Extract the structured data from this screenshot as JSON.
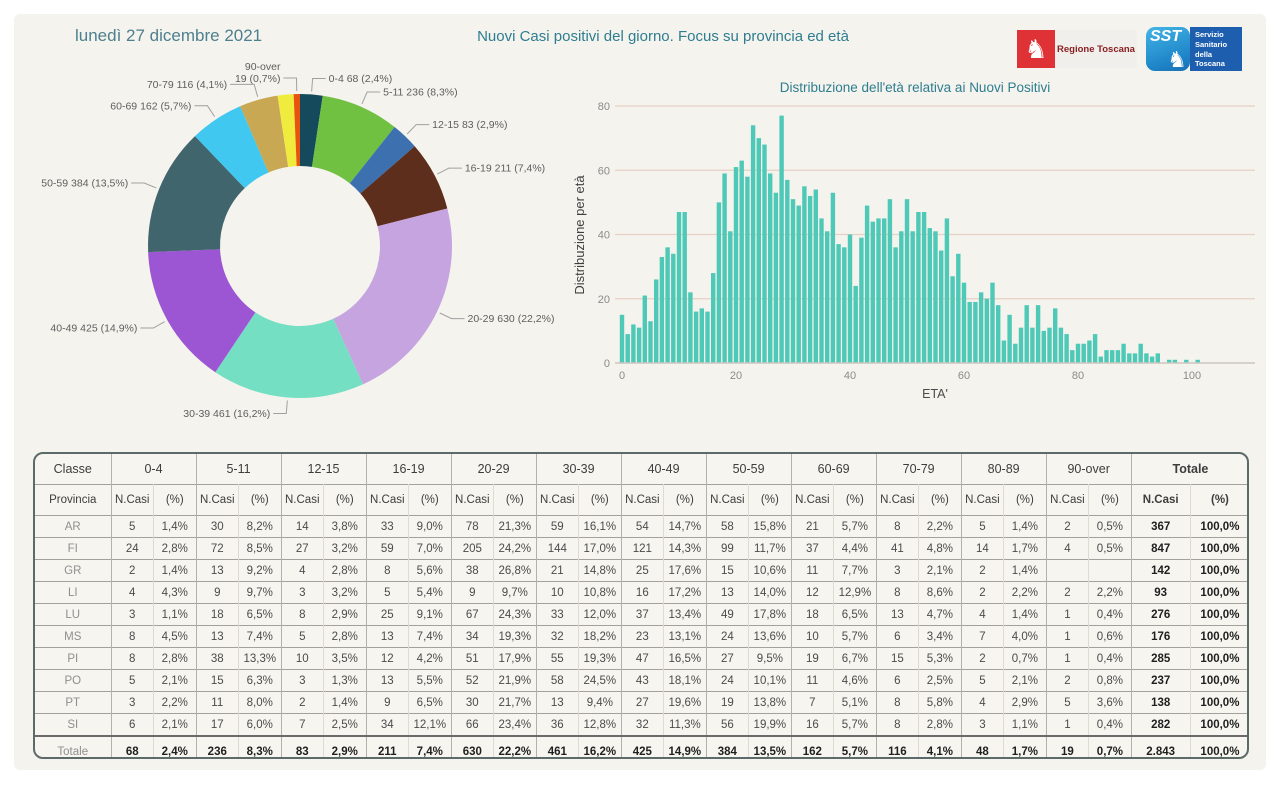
{
  "header": {
    "date": "lunedì 27 dicembre 2021",
    "title": "Nuovi Casi positivi del giorno. Focus su provincia ed età",
    "logos": {
      "regione_label": "Regione Toscana",
      "sst_abbr": "SST",
      "sst_label": "Servizio Sanitario della Toscana"
    }
  },
  "chart_data": [
    {
      "type": "pie",
      "name": "donut-eta-nuovi-positivi",
      "slices": [
        {
          "label": "0-4",
          "value": 68,
          "pct": "2,4%",
          "color": "#15495c"
        },
        {
          "label": "5-11",
          "value": 236,
          "pct": "8,3%",
          "color": "#70c041"
        },
        {
          "label": "12-15",
          "value": 83,
          "pct": "2,9%",
          "color": "#3c70ae"
        },
        {
          "label": "16-19",
          "value": 211,
          "pct": "7,4%",
          "color": "#5d2e1c"
        },
        {
          "label": "20-29",
          "value": 630,
          "pct": "22,2%",
          "color": "#c5a4e0"
        },
        {
          "label": "30-39",
          "value": 461,
          "pct": "16,2%",
          "color": "#74dfc3"
        },
        {
          "label": "40-49",
          "value": 425,
          "pct": "14,9%",
          "color": "#9c55d3"
        },
        {
          "label": "50-59",
          "value": 384,
          "pct": "13,5%",
          "color": "#41656d"
        },
        {
          "label": "60-69",
          "value": 162,
          "pct": "5,7%",
          "color": "#41c8f0"
        },
        {
          "label": "70-79",
          "value": 116,
          "pct": "4,1%",
          "color": "#c9a853"
        },
        {
          "label": "80-89",
          "value": 48,
          "pct": "1,7%",
          "color": "#f0ec3d"
        },
        {
          "label": "90-over",
          "value": 19,
          "pct": "0,7%",
          "color": "#e8530e"
        }
      ]
    },
    {
      "type": "bar",
      "name": "histogram-eta",
      "title": "Distribuzione dell'età relativa ai Nuovi Positivi",
      "xlabel": "ETA'",
      "ylabel": "Distribuzione per età",
      "ages_start": 0,
      "values": [
        15,
        9,
        12,
        11,
        21,
        13,
        26,
        33,
        36,
        34,
        47,
        47,
        22,
        16,
        17,
        16,
        28,
        50,
        59,
        41,
        61,
        63,
        58,
        74,
        70,
        68,
        59,
        53,
        77,
        57,
        51,
        49,
        55,
        52,
        54,
        45,
        41,
        53,
        37,
        36,
        40,
        24,
        39,
        49,
        44,
        45,
        45,
        51,
        36,
        41,
        51,
        41,
        47,
        47,
        42,
        41,
        35,
        45,
        27,
        34,
        25,
        19,
        19,
        22,
        20,
        25,
        18,
        7,
        15,
        6,
        11,
        18,
        11,
        18,
        10,
        11,
        17,
        11,
        9,
        4,
        6,
        6,
        7,
        9,
        2,
        4,
        4,
        4,
        6,
        3,
        3,
        6,
        3,
        2,
        3,
        0,
        1,
        1,
        0,
        1,
        0,
        1
      ],
      "ylim": [
        0,
        80
      ],
      "yticks": [
        0,
        20,
        40,
        60,
        80
      ],
      "xticks": [
        0,
        20,
        40,
        60,
        80,
        100
      ],
      "bar_color": "#4ec9b7",
      "grid_color": "#e7d0c6",
      "axis_color": "#ccc8c0",
      "tick_color": "#8b8b8b"
    }
  ],
  "table": {
    "classe_label": "Classe",
    "provincia_label": "Provincia",
    "groups": [
      "0-4",
      "5-11",
      "12-15",
      "16-19",
      "20-29",
      "30-39",
      "40-49",
      "50-59",
      "60-69",
      "70-79",
      "80-89",
      "90-over",
      "Totale"
    ],
    "subheaders": [
      "N.Casi",
      "(%)"
    ],
    "rows": [
      {
        "prov": "AR",
        "cells": [
          "5",
          "1,4%",
          "30",
          "8,2%",
          "14",
          "3,8%",
          "33",
          "9,0%",
          "78",
          "21,3%",
          "59",
          "16,1%",
          "54",
          "14,7%",
          "58",
          "15,8%",
          "21",
          "5,7%",
          "8",
          "2,2%",
          "5",
          "1,4%",
          "2",
          "0,5%",
          "367",
          "100,0%"
        ]
      },
      {
        "prov": "FI",
        "cells": [
          "24",
          "2,8%",
          "72",
          "8,5%",
          "27",
          "3,2%",
          "59",
          "7,0%",
          "205",
          "24,2%",
          "144",
          "17,0%",
          "121",
          "14,3%",
          "99",
          "11,7%",
          "37",
          "4,4%",
          "41",
          "4,8%",
          "14",
          "1,7%",
          "4",
          "0,5%",
          "847",
          "100,0%"
        ]
      },
      {
        "prov": "GR",
        "cells": [
          "2",
          "1,4%",
          "13",
          "9,2%",
          "4",
          "2,8%",
          "8",
          "5,6%",
          "38",
          "26,8%",
          "21",
          "14,8%",
          "25",
          "17,6%",
          "15",
          "10,6%",
          "11",
          "7,7%",
          "3",
          "2,1%",
          "2",
          "1,4%",
          "",
          "",
          "142",
          "100,0%"
        ]
      },
      {
        "prov": "LI",
        "cells": [
          "4",
          "4,3%",
          "9",
          "9,7%",
          "3",
          "3,2%",
          "5",
          "5,4%",
          "9",
          "9,7%",
          "10",
          "10,8%",
          "16",
          "17,2%",
          "13",
          "14,0%",
          "12",
          "12,9%",
          "8",
          "8,6%",
          "2",
          "2,2%",
          "2",
          "2,2%",
          "93",
          "100,0%"
        ]
      },
      {
        "prov": "LU",
        "cells": [
          "3",
          "1,1%",
          "18",
          "6,5%",
          "8",
          "2,9%",
          "25",
          "9,1%",
          "67",
          "24,3%",
          "33",
          "12,0%",
          "37",
          "13,4%",
          "49",
          "17,8%",
          "18",
          "6,5%",
          "13",
          "4,7%",
          "4",
          "1,4%",
          "1",
          "0,4%",
          "276",
          "100,0%"
        ]
      },
      {
        "prov": "MS",
        "cells": [
          "8",
          "4,5%",
          "13",
          "7,4%",
          "5",
          "2,8%",
          "13",
          "7,4%",
          "34",
          "19,3%",
          "32",
          "18,2%",
          "23",
          "13,1%",
          "24",
          "13,6%",
          "10",
          "5,7%",
          "6",
          "3,4%",
          "7",
          "4,0%",
          "1",
          "0,6%",
          "176",
          "100,0%"
        ]
      },
      {
        "prov": "PI",
        "cells": [
          "8",
          "2,8%",
          "38",
          "13,3%",
          "10",
          "3,5%",
          "12",
          "4,2%",
          "51",
          "17,9%",
          "55",
          "19,3%",
          "47",
          "16,5%",
          "27",
          "9,5%",
          "19",
          "6,7%",
          "15",
          "5,3%",
          "2",
          "0,7%",
          "1",
          "0,4%",
          "285",
          "100,0%"
        ]
      },
      {
        "prov": "PO",
        "cells": [
          "5",
          "2,1%",
          "15",
          "6,3%",
          "3",
          "1,3%",
          "13",
          "5,5%",
          "52",
          "21,9%",
          "58",
          "24,5%",
          "43",
          "18,1%",
          "24",
          "10,1%",
          "11",
          "4,6%",
          "6",
          "2,5%",
          "5",
          "2,1%",
          "2",
          "0,8%",
          "237",
          "100,0%"
        ]
      },
      {
        "prov": "PT",
        "cells": [
          "3",
          "2,2%",
          "11",
          "8,0%",
          "2",
          "1,4%",
          "9",
          "6,5%",
          "30",
          "21,7%",
          "13",
          "9,4%",
          "27",
          "19,6%",
          "19",
          "13,8%",
          "7",
          "5,1%",
          "8",
          "5,8%",
          "4",
          "2,9%",
          "5",
          "3,6%",
          "138",
          "100,0%"
        ]
      },
      {
        "prov": "SI",
        "cells": [
          "6",
          "2,1%",
          "17",
          "6,0%",
          "7",
          "2,5%",
          "34",
          "12,1%",
          "66",
          "23,4%",
          "36",
          "12,8%",
          "32",
          "11,3%",
          "56",
          "19,9%",
          "16",
          "5,7%",
          "8",
          "2,8%",
          "3",
          "1,1%",
          "1",
          "0,4%",
          "282",
          "100,0%"
        ]
      }
    ],
    "total_row": {
      "prov": "Totale",
      "cells": [
        "68",
        "2,4%",
        "236",
        "8,3%",
        "83",
        "2,9%",
        "211",
        "7,4%",
        "630",
        "22,2%",
        "461",
        "16,2%",
        "425",
        "14,9%",
        "384",
        "13,5%",
        "162",
        "5,7%",
        "116",
        "4,1%",
        "48",
        "1,7%",
        "19",
        "0,7%",
        "2.843",
        "100,0%"
      ]
    }
  }
}
